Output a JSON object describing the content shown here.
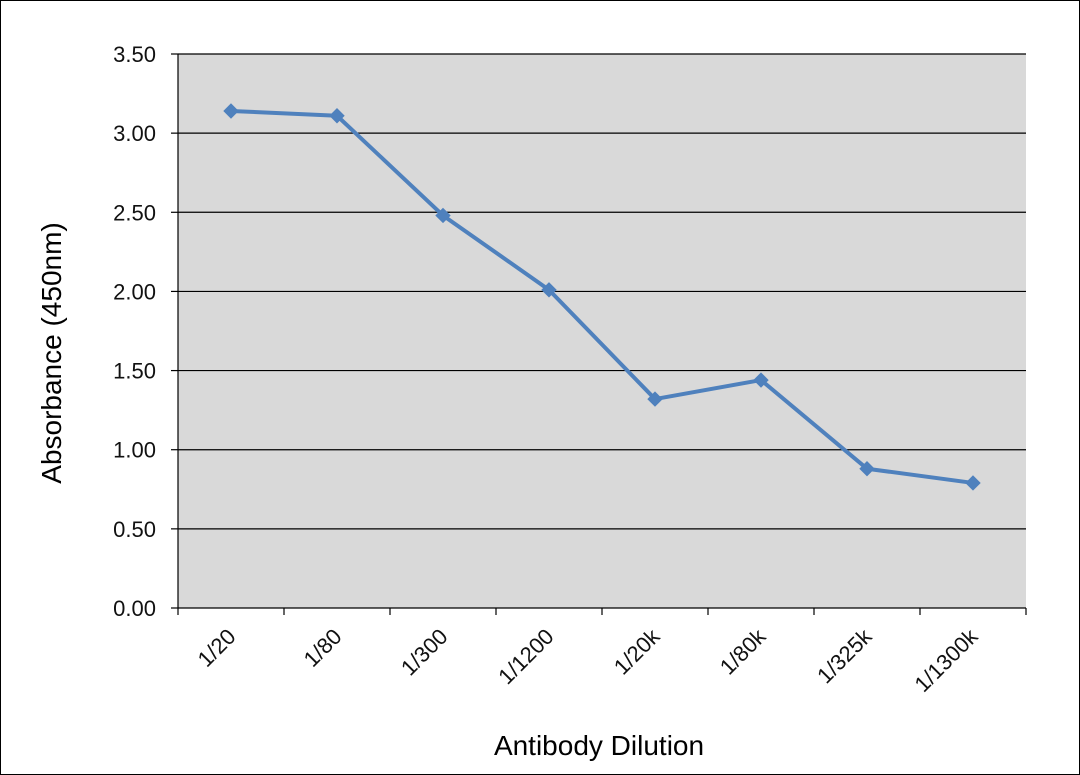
{
  "chart_data": {
    "type": "line",
    "title": "",
    "xlabel": "Antibody Dilution",
    "ylabel": "Absorbance (450nm)",
    "categories": [
      "1/20",
      "1/80",
      "1/300",
      "1/1200",
      "1/20k",
      "1/80k",
      "1/325k",
      "1/1300k"
    ],
    "series": [
      {
        "values": [
          3.14,
          3.11,
          2.48,
          2.01,
          1.32,
          1.44,
          0.88,
          0.79
        ],
        "color": "#4f81bd",
        "marker": "diamond"
      }
    ],
    "ylim": [
      0,
      3.5
    ],
    "yticks": [
      "0.00",
      "0.50",
      "1.00",
      "1.50",
      "2.00",
      "2.50",
      "3.00",
      "3.50"
    ],
    "grid": true,
    "legend": "none",
    "plot_background": "#d9d9d9"
  }
}
